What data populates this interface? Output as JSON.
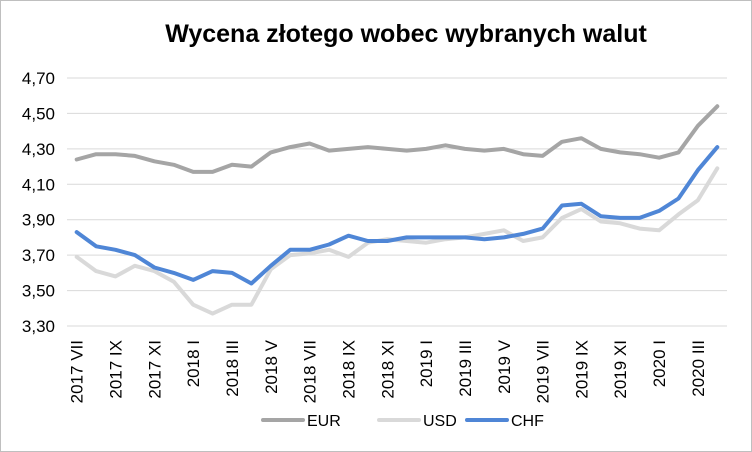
{
  "chart_data": {
    "type": "line",
    "title": "Wycena złotego wobec wybranych walut",
    "xlabel": "",
    "ylabel": "",
    "ylim": [
      3.3,
      4.7
    ],
    "yticks": [
      "3,30",
      "3,50",
      "3,70",
      "3,90",
      "4,10",
      "4,30",
      "4,50",
      "4,70"
    ],
    "grid": "horizontal",
    "legend_position": "bottom",
    "x": [
      "2017 VII",
      "2017 VIII",
      "2017 IX",
      "2017 X",
      "2017 XI",
      "2017 XII",
      "2018 I",
      "2018 II",
      "2018 III",
      "2018 IV",
      "2018 V",
      "2018 VI",
      "2018 VII",
      "2018 VIII",
      "2018 IX",
      "2018 X",
      "2018 XI",
      "2018 XII",
      "2019 I",
      "2019 II",
      "2019 III",
      "2019 IV",
      "2019 V",
      "2019 VI",
      "2019 VII",
      "2019 VIII",
      "2019 IX",
      "2019 X",
      "2019 XI",
      "2019 XII",
      "2020 I",
      "2020 II",
      "2020 III",
      "2020 IV"
    ],
    "xtick_labels": [
      "2017 VII",
      "2017 IX",
      "2017 XI",
      "2018 I",
      "2018 III",
      "2018 V",
      "2018 VII",
      "2018 IX",
      "2018 XI",
      "2019 I",
      "2019 III",
      "2019 V",
      "2019 VII",
      "2019 IX",
      "2019 XI",
      "2020 I",
      "2020 III"
    ],
    "series": [
      {
        "name": "EUR",
        "color": "#a5a5a5",
        "values": [
          4.24,
          4.27,
          4.27,
          4.26,
          4.23,
          4.21,
          4.17,
          4.17,
          4.21,
          4.2,
          4.28,
          4.31,
          4.33,
          4.29,
          4.3,
          4.31,
          4.3,
          4.29,
          4.3,
          4.32,
          4.3,
          4.29,
          4.3,
          4.27,
          4.26,
          4.34,
          4.36,
          4.3,
          4.28,
          4.27,
          4.25,
          4.28,
          4.43,
          4.54
        ]
      },
      {
        "name": "USD",
        "color": "#d9d9d9",
        "values": [
          3.69,
          3.61,
          3.58,
          3.64,
          3.61,
          3.55,
          3.42,
          3.37,
          3.42,
          3.42,
          3.62,
          3.7,
          3.71,
          3.73,
          3.69,
          3.77,
          3.79,
          3.78,
          3.77,
          3.79,
          3.8,
          3.82,
          3.84,
          3.78,
          3.8,
          3.91,
          3.96,
          3.89,
          3.88,
          3.85,
          3.84,
          3.93,
          4.01,
          4.19
        ]
      },
      {
        "name": "CHF",
        "color": "#4f86d6",
        "values": [
          3.83,
          3.75,
          3.73,
          3.7,
          3.63,
          3.6,
          3.56,
          3.61,
          3.6,
          3.54,
          3.64,
          3.73,
          3.73,
          3.76,
          3.81,
          3.78,
          3.78,
          3.8,
          3.8,
          3.8,
          3.8,
          3.79,
          3.8,
          3.82,
          3.85,
          3.98,
          3.99,
          3.92,
          3.91,
          3.91,
          3.95,
          4.02,
          4.18,
          4.31
        ]
      }
    ]
  }
}
